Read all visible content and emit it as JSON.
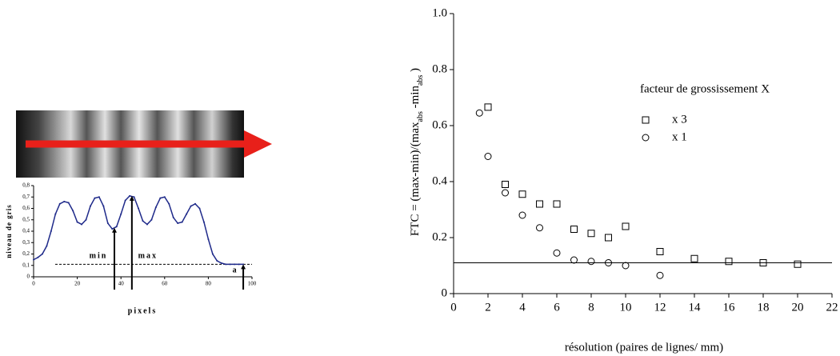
{
  "chart_data": [
    {
      "type": "line",
      "xlabel": "pixels",
      "ylabel": "niveau de gris",
      "x": [
        0,
        2,
        4,
        6,
        8,
        10,
        12,
        14,
        16,
        18,
        20,
        22,
        24,
        26,
        28,
        30,
        32,
        34,
        36,
        38,
        40,
        42,
        44,
        46,
        48,
        50,
        52,
        54,
        56,
        58,
        60,
        62,
        64,
        66,
        68,
        70,
        72,
        74,
        76,
        78,
        80,
        82,
        84,
        86,
        88,
        90,
        92,
        94,
        96
      ],
      "series": [
        {
          "color": "#1f2a8a",
          "values": [
            0.15,
            0.17,
            0.2,
            0.27,
            0.4,
            0.55,
            0.64,
            0.66,
            0.65,
            0.58,
            0.48,
            0.46,
            0.5,
            0.62,
            0.69,
            0.7,
            0.62,
            0.47,
            0.42,
            0.44,
            0.55,
            0.67,
            0.71,
            0.7,
            0.6,
            0.49,
            0.46,
            0.5,
            0.61,
            0.69,
            0.7,
            0.64,
            0.52,
            0.47,
            0.48,
            0.55,
            0.62,
            0.64,
            0.6,
            0.48,
            0.33,
            0.2,
            0.14,
            0.12,
            0.11,
            0.11,
            0.11,
            0.11,
            0.11
          ]
        }
      ],
      "xlim": [
        0,
        100
      ],
      "xticks": [
        0,
        20,
        40,
        60,
        80,
        100
      ],
      "ylim": [
        0,
        0.8
      ],
      "yticks": [
        0,
        {
          "value": 0.1,
          "label": "0,1"
        },
        {
          "value": 0.2,
          "label": "0,2"
        },
        {
          "value": 0.3,
          "label": "0,3"
        },
        {
          "value": 0.4,
          "label": "0,4"
        },
        {
          "value": 0.5,
          "label": "0,5"
        },
        {
          "value": 0.6,
          "label": "0,6"
        },
        {
          "value": 0.7,
          "label": "0,7"
        },
        {
          "value": 0.8,
          "label": "0,8"
        }
      ],
      "baseline": 0.11,
      "annotations": [
        {
          "text": "min",
          "x": 37,
          "y": 0.43
        },
        {
          "text": "max",
          "x": 45,
          "y": 0.71
        },
        {
          "text": "a",
          "x": 96,
          "y": 0.11
        }
      ]
    },
    {
      "type": "scatter",
      "xlabel": "résolution (paires de lignes/ mm)",
      "ylabel": [
        "FTC = (max-min)/(max",
        "abs",
        " -min",
        "abs",
        " )"
      ],
      "legend_title": "facteur de grossissement X",
      "series": [
        {
          "name": "x 3",
          "marker": "square",
          "color": "#000000",
          "x": [
            2,
            3,
            4,
            5,
            6,
            7,
            8,
            9,
            10,
            12,
            14,
            16,
            18,
            20
          ],
          "values": [
            0.666,
            0.39,
            0.355,
            0.32,
            0.32,
            0.23,
            0.215,
            0.2,
            0.24,
            0.15,
            0.125,
            0.115,
            0.11,
            0.105
          ]
        },
        {
          "name": "x 1",
          "marker": "circle",
          "color": "#000000",
          "x": [
            1.5,
            2,
            3,
            4,
            5,
            6,
            7,
            8,
            9,
            10,
            12
          ],
          "values": [
            0.645,
            0.49,
            0.36,
            0.28,
            0.235,
            0.145,
            0.12,
            0.115,
            0.11,
            0.1,
            0.065
          ]
        }
      ],
      "xlim": [
        0,
        22
      ],
      "xticks": [
        0,
        2,
        4,
        6,
        8,
        10,
        12,
        14,
        16,
        18,
        20,
        22
      ],
      "ylim": [
        0,
        1
      ],
      "yticks": [
        0,
        0.2,
        0.4,
        0.6,
        0.8,
        {
          "value": 1,
          "label": "1.0"
        }
      ],
      "hline": 0.11
    }
  ]
}
